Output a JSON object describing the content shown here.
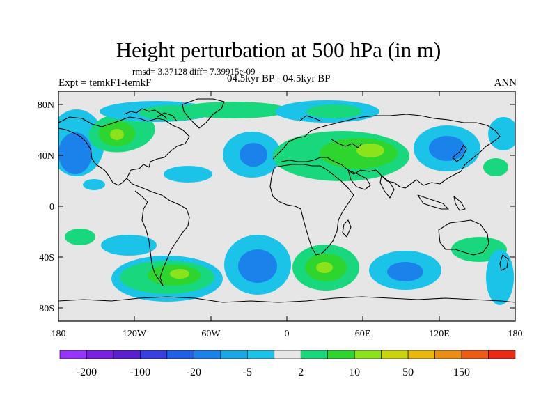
{
  "title": "Height perturbation at 500 hPa (in m)",
  "stats_line": "rmsd= 3.37128 diff= 7.39915e-09",
  "experiment": "Expt = temkF1-temkF",
  "period": "04.5kyr BP - 04.5kyr BP",
  "season": "ANN",
  "lat_tick_labels": [
    "80N",
    "40N",
    "0",
    "40S",
    "80S"
  ],
  "lon_tick_labels": [
    "180",
    "120W",
    "60W",
    "0",
    "60E",
    "120E",
    "180"
  ],
  "colorbar": {
    "colors": [
      "#9933ff",
      "#7b20e0",
      "#5a1fd0",
      "#3a3fe0",
      "#2060e8",
      "#1a82ea",
      "#19a7e6",
      "#1bc3e8",
      "#e6e6e6",
      "#19d77c",
      "#2ed52f",
      "#8ce21b",
      "#c9d40c",
      "#e8b90c",
      "#ec8d14",
      "#ee5b16",
      "#ec2a14"
    ],
    "labels": [
      "-200",
      "-100",
      "-20",
      "-5",
      "2",
      "10",
      "50",
      "150"
    ]
  },
  "field_palette": {
    "background": "#e6e6e6",
    "light_cyan": "#1bc3e8",
    "mid_blue": "#1a82ea",
    "dark_blue": "#2060e8",
    "light_green": "#19d77c",
    "green": "#2ed52f",
    "yellow_green": "#8ce21b",
    "yellow": "#c9d40c"
  }
}
